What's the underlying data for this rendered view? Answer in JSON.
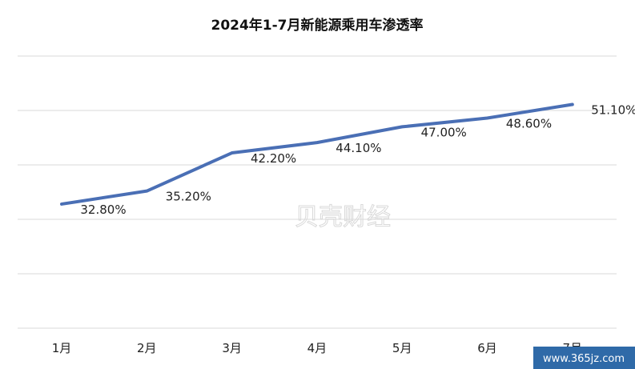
{
  "chart_data": {
    "type": "line",
    "title": "2024年1-7月新能源乘用车渗透率",
    "categories": [
      "1月",
      "2月",
      "3月",
      "4月",
      "5月",
      "6月",
      "7月"
    ],
    "series": [
      {
        "values": [
          32.8,
          35.2,
          42.2,
          44.1,
          47.0,
          48.6,
          51.1
        ],
        "labels": [
          "32.80%",
          "35.20%",
          "42.20%",
          "44.10%",
          "47.00%",
          "48.60%",
          "51.10%"
        ]
      }
    ],
    "xlabel": "",
    "ylabel": "",
    "ylim": [
      10,
      60
    ],
    "grid": true,
    "legend": "none",
    "line_color": "#4a6fb5"
  },
  "watermark": "贝壳财经",
  "site_mark": "www.365jz.com"
}
